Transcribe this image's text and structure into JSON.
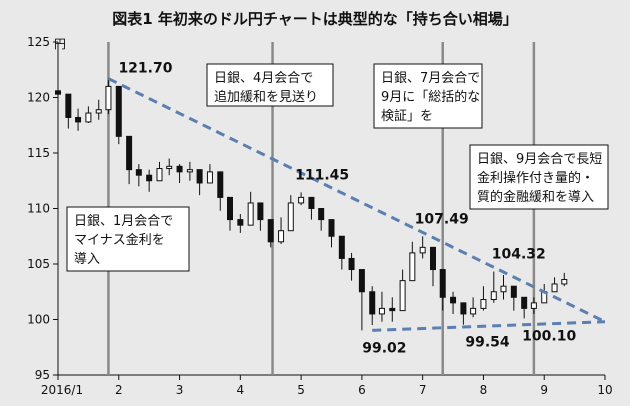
{
  "chart_data": {
    "type": "candlestick",
    "title": "図表1 年初来のドル円チャートは典型的な「持ち合い相場」",
    "y_unit": "円",
    "ylim": [
      95,
      125
    ],
    "y_ticks": [
      125,
      120,
      115,
      110,
      105,
      100,
      95
    ],
    "x_ticks": [
      "2016/1",
      "2",
      "3",
      "4",
      "5",
      "6",
      "7",
      "8",
      "9",
      "10"
    ],
    "grid": false,
    "series": [
      {
        "x_month": [
          1.0,
          1.17,
          1.33,
          1.5,
          1.67,
          1.83,
          2.0,
          2.17,
          2.33,
          2.5,
          2.67,
          2.83,
          3.0,
          3.17,
          3.33,
          3.5,
          3.67,
          3.83,
          4.0,
          4.17,
          4.33,
          4.5,
          4.67,
          4.83,
          5.0,
          5.17,
          5.33,
          5.5,
          5.67,
          5.83,
          6.0,
          6.17,
          6.33,
          6.5,
          6.67,
          6.83,
          7.0,
          7.17,
          7.33,
          7.5,
          7.67,
          7.83,
          8.0,
          8.17,
          8.33,
          8.5,
          8.67,
          8.83,
          9.0,
          9.17,
          9.33
        ],
        "close": [
          120.3,
          118.2,
          117.8,
          118.6,
          118.9,
          121.0,
          116.5,
          113.5,
          113.0,
          112.5,
          113.6,
          113.8,
          113.3,
          113.5,
          112.3,
          113.3,
          111.0,
          109.0,
          108.5,
          110.5,
          109.0,
          107.0,
          108.0,
          110.5,
          111.0,
          110.0,
          109.0,
          107.5,
          105.5,
          104.5,
          102.5,
          100.5,
          101.0,
          100.8,
          103.5,
          106.0,
          106.5,
          104.5,
          102.0,
          101.5,
          100.5,
          101.0,
          101.8,
          102.5,
          103.0,
          102.0,
          101.0,
          101.5,
          102.5,
          103.2,
          103.6
        ],
        "high": [
          120.7,
          119.5,
          119.0,
          119.2,
          119.8,
          121.7,
          118.5,
          114.5,
          114.0,
          113.5,
          114.2,
          114.5,
          114.0,
          114.2,
          113.5,
          114.0,
          112.5,
          110.5,
          109.5,
          111.5,
          110.5,
          108.5,
          109.2,
          111.2,
          111.45,
          111.0,
          110.0,
          108.5,
          106.5,
          106.0,
          104.0,
          103.0,
          102.5,
          102.0,
          104.5,
          107.0,
          107.49,
          105.5,
          103.5,
          102.5,
          101.5,
          102.0,
          103.0,
          104.32,
          104.0,
          103.0,
          102.0,
          102.0,
          103.2,
          103.8,
          104.2
        ],
        "low": [
          119.5,
          117.2,
          117.0,
          117.7,
          118.0,
          118.5,
          115.8,
          112.2,
          112.0,
          111.5,
          112.6,
          113.0,
          112.3,
          112.5,
          111.2,
          112.3,
          109.8,
          108.0,
          107.8,
          109.0,
          108.0,
          106.5,
          106.8,
          109.0,
          110.3,
          109.0,
          108.0,
          106.5,
          104.5,
          103.5,
          99.02,
          99.5,
          99.8,
          99.8,
          101.5,
          104.5,
          105.5,
          103.0,
          100.8,
          100.5,
          99.54,
          100.2,
          100.8,
          101.5,
          101.8,
          100.8,
          100.1,
          100.5,
          101.5,
          102.5,
          103.0
        ]
      }
    ],
    "trendlines": [
      {
        "style": "dashed",
        "from": [
          1.83,
          121.7
        ],
        "to": [
          10.0,
          99.8
        ]
      },
      {
        "style": "dashed",
        "from": [
          6.17,
          99.02
        ],
        "to": [
          10.0,
          99.8
        ]
      }
    ],
    "event_lines_x": [
      1.83,
      4.53,
      7.33,
      8.83
    ],
    "labels": [
      {
        "text": "121.70",
        "x": 1.83,
        "y": 121.7
      },
      {
        "text": "111.45",
        "x": 5.0,
        "y": 111.45
      },
      {
        "text": "107.49",
        "x": 7.0,
        "y": 107.49
      },
      {
        "text": "104.32",
        "x": 8.17,
        "y": 104.32
      },
      {
        "text": "99.02",
        "x": 6.17,
        "y": 99.02
      },
      {
        "text": "99.54",
        "x": 7.67,
        "y": 99.54
      },
      {
        "text": "100.10",
        "x": 8.67,
        "y": 100.1
      }
    ],
    "notes": [
      {
        "lines": [
          "日銀、1月会合で",
          "マイナス金利を",
          "導入"
        ]
      },
      {
        "lines": [
          "日銀、4月会合で",
          "追加緩和を見送り"
        ]
      },
      {
        "lines": [
          "日銀、7月会合で",
          "9月に「総括的な",
          "検証」を"
        ]
      },
      {
        "lines": [
          "日銀、9月会合で長短",
          "金利操作付き量的・",
          "質的金融緩和を導入"
        ]
      }
    ]
  }
}
